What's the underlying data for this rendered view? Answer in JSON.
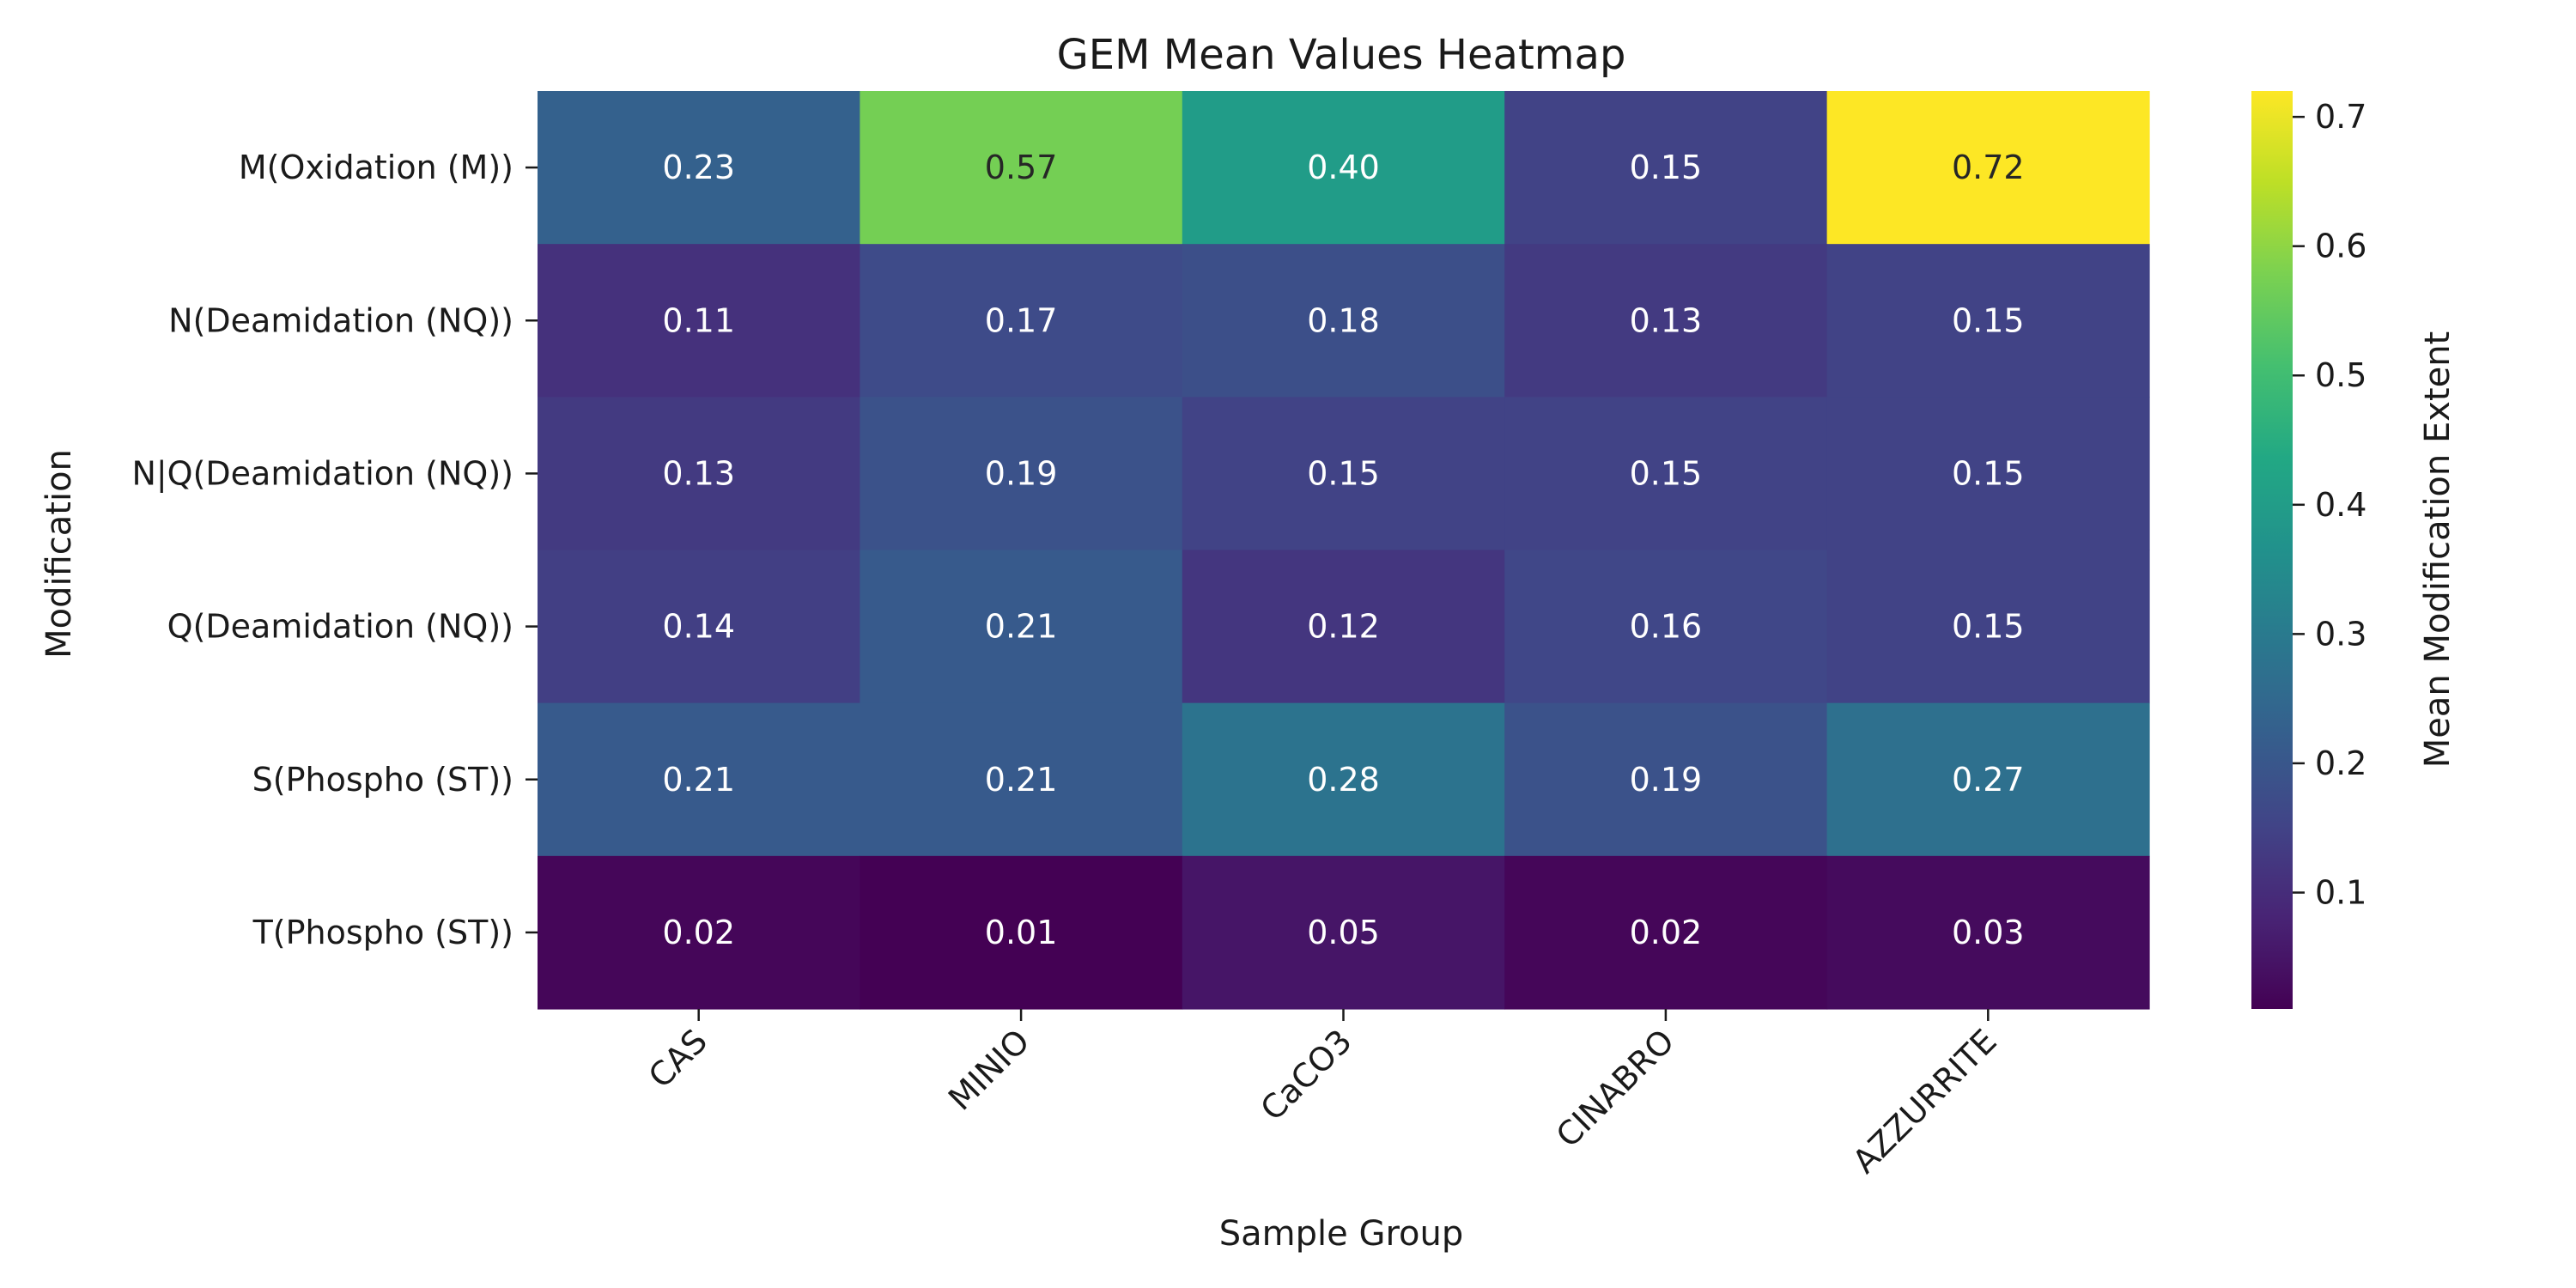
{
  "chart_data": {
    "type": "heatmap",
    "title": "GEM Mean Values Heatmap",
    "xlabel": "Sample Group",
    "ylabel": "Modification",
    "colorbar_label": "Mean Modification Extent",
    "colormap": "viridis",
    "value_range": [
      0.01,
      0.72
    ],
    "colorbar_ticks": [
      "0.1",
      "0.2",
      "0.3",
      "0.4",
      "0.5",
      "0.6",
      "0.7"
    ],
    "x_categories": [
      "CAS",
      "MINIO",
      "CaCO3",
      "CINABRO",
      "AZZURRITE"
    ],
    "y_categories": [
      "M(Oxidation (M))",
      "N(Deamidation (NQ))",
      "N|Q(Deamidation (NQ))",
      "Q(Deamidation (NQ))",
      "S(Phospho (ST))",
      "T(Phospho (ST))"
    ],
    "values": [
      [
        0.23,
        0.57,
        0.4,
        0.15,
        0.72
      ],
      [
        0.11,
        0.17,
        0.18,
        0.13,
        0.15
      ],
      [
        0.13,
        0.19,
        0.15,
        0.15,
        0.15
      ],
      [
        0.14,
        0.21,
        0.12,
        0.16,
        0.15
      ],
      [
        0.21,
        0.21,
        0.28,
        0.19,
        0.27
      ],
      [
        0.02,
        0.01,
        0.05,
        0.02,
        0.03
      ]
    ],
    "value_labels": [
      [
        "0.23",
        "0.57",
        "0.40",
        "0.15",
        "0.72"
      ],
      [
        "0.11",
        "0.17",
        "0.18",
        "0.13",
        "0.15"
      ],
      [
        "0.13",
        "0.19",
        "0.15",
        "0.15",
        "0.15"
      ],
      [
        "0.14",
        "0.21",
        "0.12",
        "0.16",
        "0.15"
      ],
      [
        "0.21",
        "0.21",
        "0.28",
        "0.19",
        "0.27"
      ],
      [
        "0.02",
        "0.01",
        "0.05",
        "0.02",
        "0.03"
      ]
    ]
  }
}
